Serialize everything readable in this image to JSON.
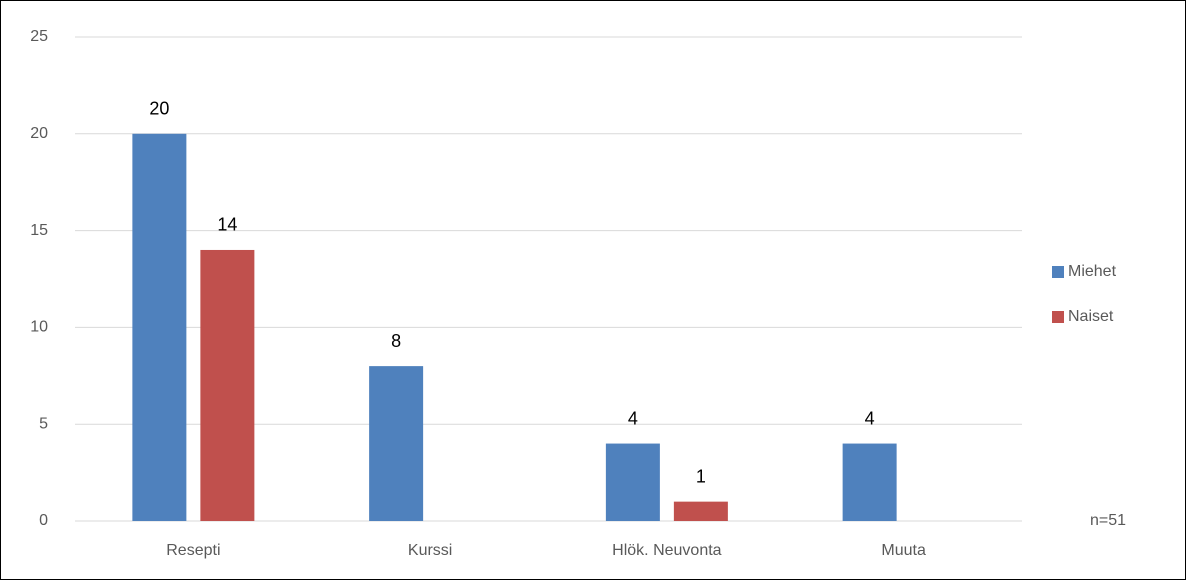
{
  "chart_data": {
    "type": "bar",
    "categories": [
      "Resepti",
      "Kurssi",
      "Hlök. Neuvonta",
      "Muuta"
    ],
    "series": [
      {
        "name": "Miehet",
        "color": "#4f81bd",
        "values": [
          20,
          8,
          4,
          4
        ]
      },
      {
        "name": "Naiset",
        "color": "#c0504d",
        "values": [
          14,
          null,
          1,
          null
        ]
      }
    ],
    "ylim": [
      0,
      25
    ],
    "yticks": [
      0,
      5,
      10,
      15,
      20,
      25
    ],
    "grid": true,
    "legend": "right",
    "annotation": "n=51"
  }
}
